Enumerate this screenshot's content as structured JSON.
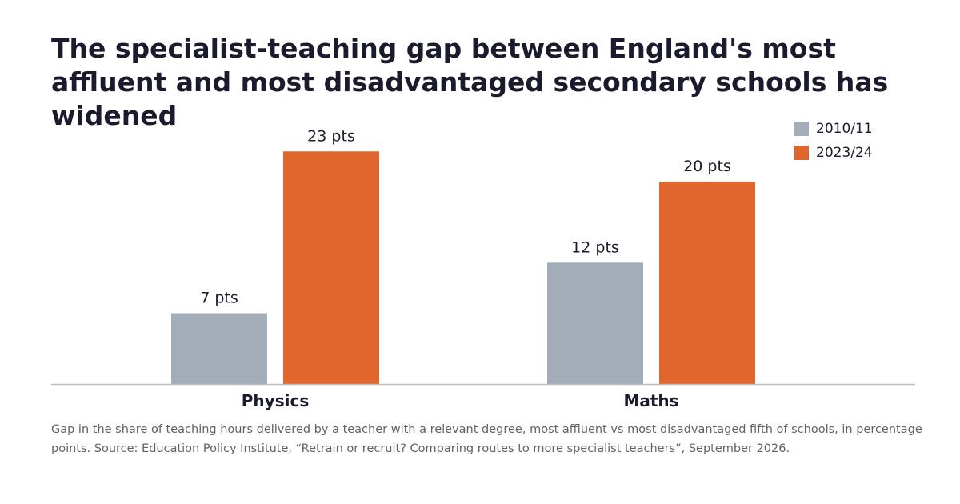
{
  "chart_data": {
    "type": "bar",
    "title": "The specialist-teaching gap between England's most affluent and most disadvantaged secondary schools has widened",
    "categories": [
      "Physics",
      "Maths"
    ],
    "series": [
      {
        "name": "2010/11",
        "values": [
          7,
          12
        ],
        "labels": [
          "7 pts",
          "12 pts"
        ],
        "color": "#a3adba"
      },
      {
        "name": "2023/24",
        "values": [
          23,
          20
        ],
        "labels": [
          "23 pts",
          "20 pts"
        ],
        "color": "#e0662e"
      }
    ],
    "xlabel": "",
    "ylabel": "",
    "ylim": [
      0,
      25
    ],
    "grid": false,
    "legend_position": "top-right"
  },
  "footnote": "Gap in the share of teaching hours delivered by a teacher with a relevant degree, most affluent vs most disadvantaged fifth of schools, in percentage points. Source: Education Policy Institute, “Retrain or recruit? Comparing routes to more specialist teachers”, September 2026."
}
